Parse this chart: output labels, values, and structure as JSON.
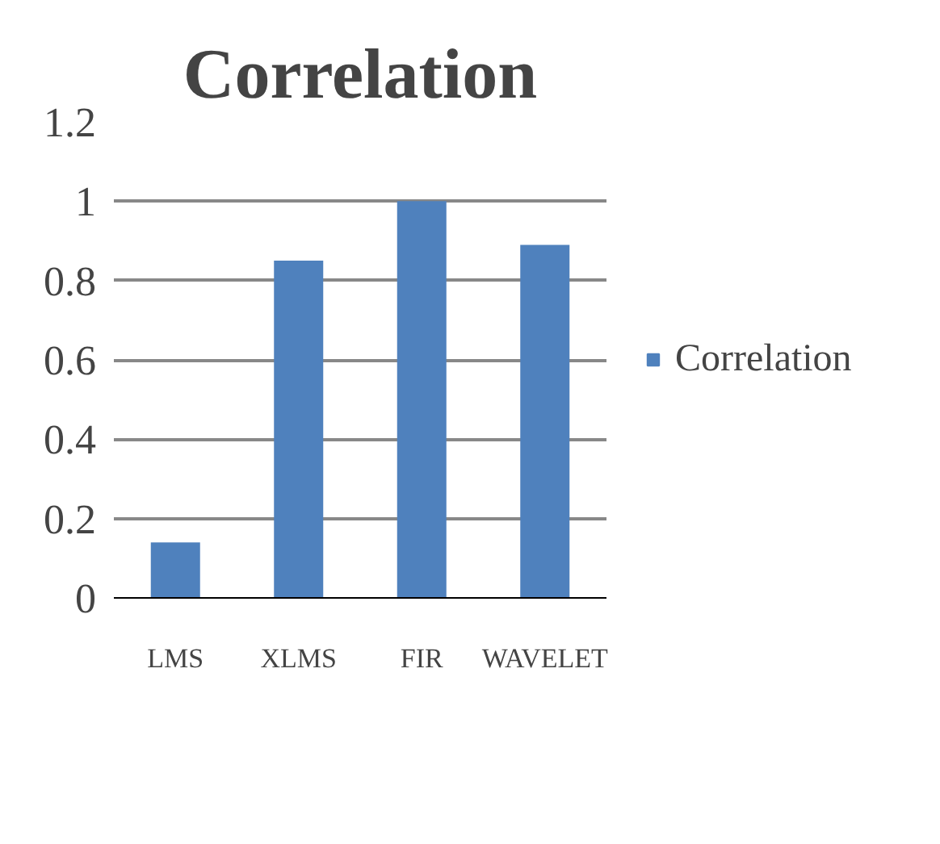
{
  "chart_data": {
    "type": "bar",
    "title": "Correlation",
    "categories": [
      "LMS",
      "XLMS",
      "FIR",
      "WAVELET"
    ],
    "series": [
      {
        "name": "Correlation",
        "color": "#4f81bd",
        "values": [
          0.14,
          0.85,
          1.0,
          0.89
        ]
      }
    ],
    "ylim": [
      0,
      1.2
    ],
    "yticks": [
      0,
      0.2,
      0.4,
      0.6,
      0.8,
      1,
      1.2
    ],
    "grid": "y",
    "legend": "right"
  }
}
